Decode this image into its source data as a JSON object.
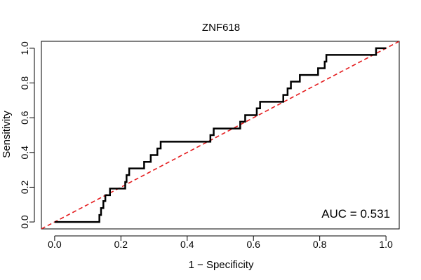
{
  "chart_data": {
    "type": "line",
    "title": "ZNF618",
    "xlabel": "1 − Specificity",
    "ylabel": "Sensitivity",
    "xlim": [
      -0.04,
      1.04
    ],
    "ylim": [
      -0.04,
      1.04
    ],
    "x_ticks": [
      0.0,
      0.2,
      0.4,
      0.6,
      0.8,
      1.0
    ],
    "y_ticks": [
      0.0,
      0.2,
      0.4,
      0.6,
      0.8,
      1.0
    ],
    "x_tick_labels": [
      "0.0",
      "0.2",
      "0.4",
      "0.6",
      "0.8",
      "1.0"
    ],
    "y_tick_labels": [
      "0.0",
      "0.2",
      "0.4",
      "0.6",
      "0.8",
      "1.0"
    ],
    "grid": false,
    "series": [
      {
        "style": "solid",
        "color": "#000000",
        "points": [
          [
            0.0,
            0.0
          ],
          [
            0.135,
            0.0
          ],
          [
            0.135,
            0.04
          ],
          [
            0.14,
            0.04
          ],
          [
            0.14,
            0.08
          ],
          [
            0.147,
            0.08
          ],
          [
            0.147,
            0.12
          ],
          [
            0.153,
            0.12
          ],
          [
            0.153,
            0.154
          ],
          [
            0.167,
            0.154
          ],
          [
            0.167,
            0.192
          ],
          [
            0.213,
            0.192
          ],
          [
            0.213,
            0.23
          ],
          [
            0.217,
            0.23
          ],
          [
            0.217,
            0.27
          ],
          [
            0.225,
            0.27
          ],
          [
            0.225,
            0.308
          ],
          [
            0.27,
            0.308
          ],
          [
            0.27,
            0.346
          ],
          [
            0.29,
            0.346
          ],
          [
            0.29,
            0.385
          ],
          [
            0.31,
            0.385
          ],
          [
            0.31,
            0.423
          ],
          [
            0.32,
            0.423
          ],
          [
            0.32,
            0.462
          ],
          [
            0.47,
            0.462
          ],
          [
            0.47,
            0.5
          ],
          [
            0.48,
            0.5
          ],
          [
            0.48,
            0.538
          ],
          [
            0.56,
            0.538
          ],
          [
            0.56,
            0.577
          ],
          [
            0.575,
            0.577
          ],
          [
            0.575,
            0.615
          ],
          [
            0.61,
            0.615
          ],
          [
            0.61,
            0.654
          ],
          [
            0.62,
            0.654
          ],
          [
            0.62,
            0.692
          ],
          [
            0.69,
            0.692
          ],
          [
            0.69,
            0.731
          ],
          [
            0.703,
            0.731
          ],
          [
            0.703,
            0.769
          ],
          [
            0.713,
            0.769
          ],
          [
            0.713,
            0.808
          ],
          [
            0.74,
            0.808
          ],
          [
            0.74,
            0.846
          ],
          [
            0.795,
            0.846
          ],
          [
            0.795,
            0.885
          ],
          [
            0.815,
            0.885
          ],
          [
            0.815,
            0.923
          ],
          [
            0.82,
            0.923
          ],
          [
            0.82,
            0.962
          ],
          [
            0.97,
            0.962
          ],
          [
            0.97,
            1.0
          ],
          [
            1.0,
            1.0
          ]
        ]
      },
      {
        "style": "dashed",
        "color": "#e41a1c",
        "points": [
          [
            -0.04,
            -0.04
          ],
          [
            1.04,
            1.04
          ]
        ]
      }
    ],
    "annotations": [
      {
        "text": "AUC = 0.531",
        "position": "bottom-right"
      }
    ]
  }
}
